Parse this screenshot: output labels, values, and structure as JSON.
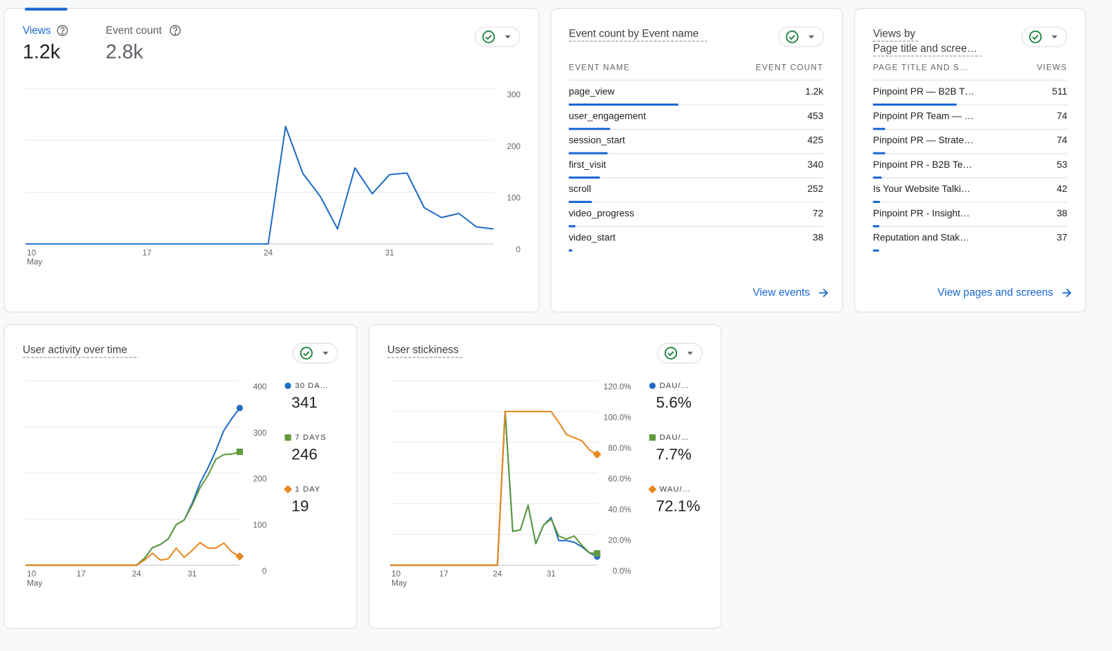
{
  "overview": {
    "tabs": [
      {
        "label": "Views",
        "value": "1.2k"
      },
      {
        "label": "Event count",
        "value": "2.8k"
      }
    ],
    "chart": {
      "type": "line",
      "categories": [
        "10",
        null,
        null,
        null,
        null,
        null,
        null,
        "17",
        null,
        null,
        null,
        null,
        null,
        null,
        "24",
        null,
        null,
        null,
        null,
        null,
        null,
        "31",
        null,
        null,
        null,
        null,
        null,
        null
      ],
      "x_sublabel": "May",
      "ylim": [
        0,
        300
      ],
      "yticks": [
        0,
        100,
        200,
        300
      ],
      "grid": true,
      "series": [
        {
          "color": "#1f6cc4",
          "values": [
            0,
            0,
            0,
            0,
            0,
            0,
            0,
            0,
            0,
            0,
            0,
            0,
            0,
            0,
            0,
            227,
            136,
            92,
            29,
            147,
            97,
            134,
            137,
            70,
            51,
            59,
            33,
            29
          ]
        }
      ]
    }
  },
  "events_table": {
    "title": "Event count by Event name",
    "columns": [
      "EVENT NAME",
      "EVENT COUNT"
    ],
    "bar_color": "#1967d2",
    "link": "View events",
    "rows": [
      {
        "name": "page_view",
        "count": {
          "value": 1200,
          "label": "1.2k"
        }
      },
      {
        "name": "user_engagement",
        "count": 453
      },
      {
        "name": "session_start",
        "count": 425
      },
      {
        "name": "first_visit",
        "count": 340
      },
      {
        "name": "scroll",
        "count": 252
      },
      {
        "name": "video_progress",
        "count": 72
      },
      {
        "name": "video_start",
        "count": 38
      }
    ]
  },
  "pages_table": {
    "title": "Views by",
    "subtitle": "Page title and scree…",
    "columns": [
      "PAGE TITLE AND S…",
      "VIEWS"
    ],
    "bar_color": "#1967d2",
    "link": "View pages and screens",
    "rows": [
      {
        "name": "Pinpoint PR — B2B T…",
        "count": 511
      },
      {
        "name": "Pinpoint PR Team — …",
        "count": 74
      },
      {
        "name": "Pinpoint PR — Strate…",
        "count": 74
      },
      {
        "name": "Pinpoint PR - B2B Te…",
        "count": 53
      },
      {
        "name": "Is Your Website Talki…",
        "count": 42
      },
      {
        "name": "Pinpoint PR - Insight…",
        "count": 38
      },
      {
        "name": "Reputation and Stak…",
        "count": 37
      }
    ]
  },
  "user_activity": {
    "title": "User activity over time",
    "chart": {
      "type": "line",
      "categories": [
        "10",
        null,
        null,
        null,
        null,
        null,
        null,
        "17",
        null,
        null,
        null,
        null,
        null,
        null,
        "24",
        null,
        null,
        null,
        null,
        null,
        null,
        "31",
        null,
        null,
        null,
        null,
        null,
        null
      ],
      "x_sublabel": "May",
      "ylim": [
        0,
        400
      ],
      "yticks": [
        0,
        100,
        200,
        300,
        400
      ],
      "grid": true,
      "series": [
        {
          "name": "30 DA…",
          "legend_value": "341",
          "color": "#1f6cc4",
          "marker": "circle",
          "values": [
            0,
            0,
            0,
            0,
            0,
            0,
            0,
            0,
            0,
            0,
            0,
            0,
            0,
            0,
            0,
            15,
            38,
            45,
            57,
            88,
            98,
            134,
            178,
            211,
            249,
            292,
            318,
            341
          ]
        },
        {
          "name": "7 DAYS",
          "legend_value": "246",
          "color": "#5e9a3b",
          "marker": "square",
          "values": [
            0,
            0,
            0,
            0,
            0,
            0,
            0,
            0,
            0,
            0,
            0,
            0,
            0,
            0,
            0,
            15,
            38,
            45,
            57,
            88,
            98,
            130,
            168,
            195,
            230,
            240,
            241,
            246
          ]
        },
        {
          "name": "1 DAY",
          "legend_value": "19",
          "color": "#e8871e",
          "marker": "diamond",
          "values": [
            0,
            0,
            0,
            0,
            0,
            0,
            0,
            0,
            0,
            0,
            0,
            0,
            0,
            0,
            0,
            11,
            26,
            11,
            14,
            37,
            17,
            32,
            49,
            37,
            37,
            48,
            29,
            19
          ]
        }
      ]
    }
  },
  "user_stickiness": {
    "title": "User stickiness",
    "chart": {
      "type": "line",
      "categories": [
        "10",
        null,
        null,
        null,
        null,
        null,
        null,
        "17",
        null,
        null,
        null,
        null,
        null,
        null,
        "24",
        null,
        null,
        null,
        null,
        null,
        null,
        "31",
        null,
        null,
        null,
        null,
        null,
        null
      ],
      "x_sublabel": "May",
      "ylim": [
        0,
        120
      ],
      "yticks": [
        {
          "value": 0,
          "label": "0.0%"
        },
        {
          "value": 20,
          "label": "20.0%"
        },
        {
          "value": 40,
          "label": "40.0%"
        },
        {
          "value": 60,
          "label": "60.0%"
        },
        {
          "value": 80,
          "label": "80.0%"
        },
        {
          "value": 100,
          "label": "100.0%"
        },
        {
          "value": 120,
          "label": "120.0%"
        }
      ],
      "grid": true,
      "series": [
        {
          "name": "DAU/…",
          "legend_value": "5.6%",
          "color": "#1f6cc4",
          "marker": "circle",
          "values": [
            0,
            0,
            0,
            0,
            0,
            0,
            0,
            0,
            0,
            0,
            0,
            0,
            0,
            0,
            0,
            100,
            22,
            23,
            39,
            14,
            26,
            31,
            16,
            16,
            15,
            12,
            8,
            5.6
          ]
        },
        {
          "name": "DAU/…",
          "legend_value": "7.7%",
          "color": "#5e9a3b",
          "marker": "square",
          "values": [
            0,
            0,
            0,
            0,
            0,
            0,
            0,
            0,
            0,
            0,
            0,
            0,
            0,
            0,
            0,
            100,
            22,
            23,
            39,
            14,
            26,
            30,
            19,
            17,
            19,
            13,
            8,
            7.7
          ]
        },
        {
          "name": "WAU/…",
          "legend_value": "72.1%",
          "color": "#e8871e",
          "marker": "diamond",
          "values": [
            0,
            0,
            0,
            0,
            0,
            0,
            0,
            0,
            0,
            0,
            0,
            0,
            0,
            0,
            0,
            100,
            100,
            100,
            100,
            100,
            100,
            100,
            93,
            85,
            83,
            81,
            75,
            72.1
          ]
        }
      ]
    }
  }
}
